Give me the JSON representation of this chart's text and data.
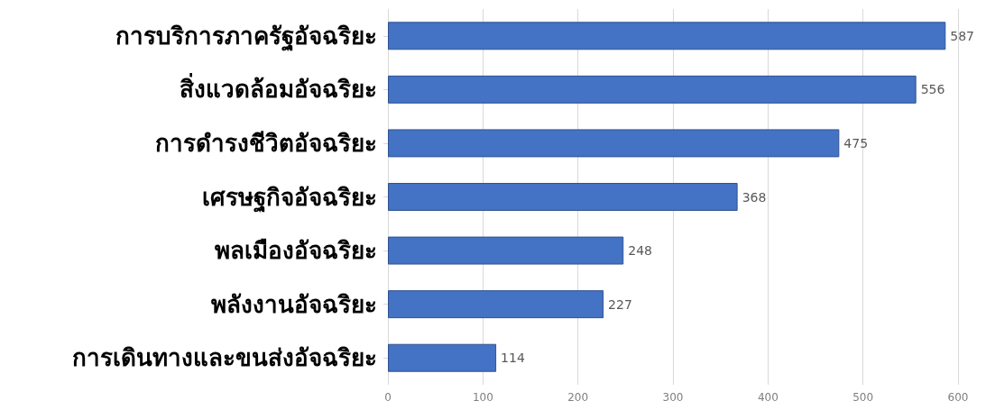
{
  "chart_data": {
    "type": "bar",
    "orientation": "horizontal",
    "categories": [
      "การบริการภาครัฐอัจฉริยะ",
      "สิ่งแวดล้อมอัจฉริยะ",
      "การดำรงชีวิตอัจฉริยะ",
      "เศรษฐกิจอัจฉริยะ",
      "พลเมืองอัจฉริยะ",
      "พลังงานอัจฉริยะ",
      "การเดินทางและขนส่งอัจฉริยะ"
    ],
    "values": [
      587,
      556,
      475,
      368,
      248,
      227,
      114
    ],
    "color": "#4472c4",
    "xlim": [
      0,
      600
    ],
    "xticks": [
      0,
      100,
      200,
      300,
      400,
      500,
      600
    ],
    "grid": "x",
    "data_labels": true
  }
}
